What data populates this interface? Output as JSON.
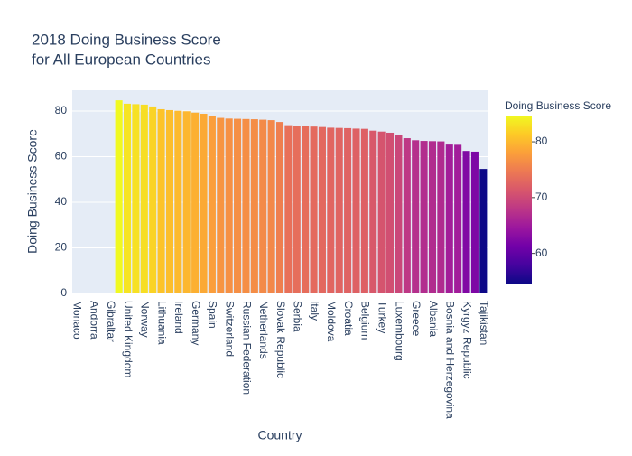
{
  "chart_data": {
    "type": "bar",
    "title": [
      "2018 Doing Business Score",
      "for All European Countries"
    ],
    "x_label": "Country",
    "y_label": "Doing Business Score",
    "categories": [
      "Monaco",
      null,
      "Andorra",
      null,
      "Gibraltar",
      null,
      "United Kingdom",
      null,
      "Norway",
      null,
      "Lithuania",
      null,
      "Ireland",
      null,
      "Germany",
      null,
      "Spain",
      null,
      "Switzerland",
      null,
      "Russian Federation",
      null,
      "Netherlands",
      null,
      "Slovak Republic",
      null,
      "Serbia",
      null,
      "Italy",
      null,
      "Moldova",
      null,
      "Croatia",
      null,
      "Belgium",
      null,
      "Turkey",
      null,
      "Luxembourg",
      null,
      "Greece",
      null,
      "Albania",
      null,
      "Bosnia and Herzegovina",
      null,
      "Kyrgyz Republic",
      null,
      "Tajikistan"
    ],
    "values": [
      null,
      null,
      null,
      null,
      null,
      84.7,
      83.2,
      83.0,
      82.8,
      82.0,
      80.8,
      80.4,
      80.1,
      79.9,
      79.3,
      78.8,
      77.9,
      77.0,
      76.7,
      76.6,
      76.5,
      76.4,
      76.2,
      76.0,
      75.2,
      73.8,
      73.6,
      73.5,
      73.2,
      73.0,
      72.7,
      72.6,
      72.5,
      72.3,
      72.2,
      71.4,
      71.0,
      70.5,
      69.6,
      68.1,
      67.2,
      66.9,
      66.8,
      66.7,
      65.3,
      65.2,
      62.5,
      62.2,
      54.6
    ],
    "ylim": [
      0,
      89.1
    ],
    "yticks": [
      0,
      20,
      40,
      60,
      80
    ],
    "grid": true,
    "colorscale": [
      "#0d0887",
      "#46039f",
      "#7201a8",
      "#9c179e",
      "#bd3786",
      "#d8576b",
      "#ed7953",
      "#fb9f3a",
      "#fdca26",
      "#f0f921"
    ],
    "colorbar": {
      "title": "Doing Business Score",
      "ticks": [
        60,
        70,
        80
      ]
    }
  }
}
